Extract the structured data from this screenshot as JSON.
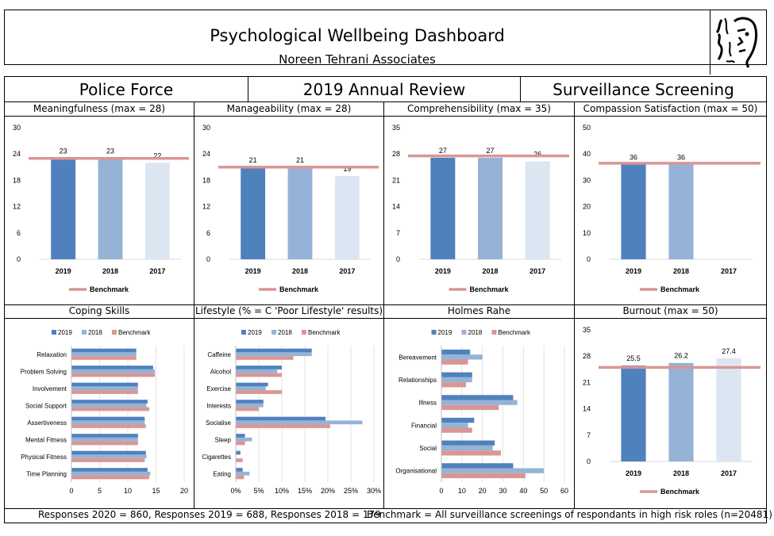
{
  "header": {
    "title": "Psychological Wellbeing Dashboard",
    "subtitle": "Noreen Tehrani Associates"
  },
  "banner": {
    "org": "Police Force",
    "period": "2019 Annual Review",
    "type": "Surveillance Screening"
  },
  "footer": {
    "responses": "Responses 2020 = 860, Responses 2019 = 688, Responses 2018 = 179",
    "benchmark": "Benchmark = All surveillance screenings of respondants in high risk roles (n=20481)"
  },
  "colors": {
    "y2019": "#4f81bd",
    "y2018": "#95b3d7",
    "y2017": "#dce6f2",
    "benchmark": "#d99694"
  },
  "chart_data": [
    {
      "id": "meaningfulness",
      "type": "bar",
      "title": "Meaningfulness (max = 28)",
      "categories": [
        "2019",
        "2018",
        "2017"
      ],
      "values": [
        23,
        23,
        22
      ],
      "labels": [
        "23",
        "23",
        "22"
      ],
      "ylim": [
        0,
        30
      ],
      "yticks": [
        0,
        6,
        12,
        18,
        24,
        30
      ],
      "benchmark": 23,
      "legend": "Benchmark"
    },
    {
      "id": "manageability",
      "type": "bar",
      "title": "Manageability (max = 28)",
      "categories": [
        "2019",
        "2018",
        "2017"
      ],
      "values": [
        21,
        21,
        19
      ],
      "labels": [
        "21",
        "21",
        "19"
      ],
      "ylim": [
        0,
        30
      ],
      "yticks": [
        0,
        6,
        12,
        18,
        24,
        30
      ],
      "benchmark": 21,
      "legend": "Benchmark"
    },
    {
      "id": "comprehensibility",
      "type": "bar",
      "title": "Comprehensibility (max = 35)",
      "categories": [
        "2019",
        "2018",
        "2017"
      ],
      "values": [
        27,
        27,
        26
      ],
      "labels": [
        "27",
        "27",
        "26"
      ],
      "ylim": [
        0,
        35
      ],
      "yticks": [
        0,
        7,
        14,
        21,
        28,
        35
      ],
      "benchmark": 27.5,
      "legend": "Benchmark"
    },
    {
      "id": "compassion",
      "type": "bar",
      "title": "Compassion Satisfaction (max = 50)",
      "categories": [
        "2019",
        "2018",
        "2017"
      ],
      "values": [
        36,
        36,
        null
      ],
      "labels": [
        "36",
        "36",
        ""
      ],
      "ylim": [
        0,
        50
      ],
      "yticks": [
        0,
        10,
        20,
        30,
        40,
        50
      ],
      "benchmark": 36.5,
      "legend": "Benchmark"
    },
    {
      "id": "coping",
      "type": "bar",
      "orientation": "horizontal",
      "title": "Coping Skills",
      "categories": [
        "Relaxation",
        "Problem Solving",
        "Involvement",
        "Social Support",
        "Assertiveness",
        "Mental Fitness",
        "Physical Fitness",
        "Time Planning"
      ],
      "series": [
        {
          "name": "2019",
          "values": [
            11.5,
            14.5,
            11.8,
            13.5,
            13,
            11.8,
            13.2,
            13.5
          ]
        },
        {
          "name": "2018",
          "values": [
            11.5,
            14.8,
            11.8,
            13.3,
            13,
            11.8,
            13.3,
            14
          ]
        },
        {
          "name": "Benchmark",
          "values": [
            11.5,
            14.8,
            11.8,
            13.8,
            13.2,
            11.8,
            13,
            13.8
          ]
        }
      ],
      "xlim": [
        0,
        20
      ],
      "xticks": [
        "0",
        "5",
        "10",
        "15",
        "20"
      ],
      "xtickvals": [
        0,
        5,
        10,
        15,
        20
      ]
    },
    {
      "id": "lifestyle",
      "type": "bar",
      "orientation": "horizontal",
      "title": "Lifestyle (% = C 'Poor Lifestyle' results)",
      "categories": [
        "Caffeine",
        "Alcohol",
        "Exercise",
        "Interests",
        "Socialise",
        "Sleep",
        "Cigarettes",
        "Eating"
      ],
      "series": [
        {
          "name": "2019",
          "values": [
            16.5,
            10,
            7,
            6,
            19.5,
            2,
            1,
            1.5
          ]
        },
        {
          "name": "2018",
          "values": [
            16.5,
            9,
            6.5,
            6,
            27.5,
            3.5,
            0,
            3
          ]
        },
        {
          "name": "Benchmark",
          "values": [
            12.5,
            10,
            10,
            5,
            20.5,
            2,
            1.5,
            1.8
          ]
        }
      ],
      "xlim": [
        0,
        30
      ],
      "xticks": [
        "0%",
        "5%",
        "10%",
        "15%",
        "20%",
        "25%",
        "30%"
      ],
      "xtickvals": [
        0,
        5,
        10,
        15,
        20,
        25,
        30
      ]
    },
    {
      "id": "holmes",
      "type": "bar",
      "orientation": "horizontal",
      "title": "Holmes Rahe",
      "categories": [
        "Bereavement",
        "Relationships",
        "Illness",
        "Financial",
        "Social",
        "Organisational"
      ],
      "series": [
        {
          "name": "2019",
          "values": [
            14,
            15,
            35,
            16,
            26,
            35
          ]
        },
        {
          "name": "2018",
          "values": [
            20,
            15,
            37,
            13,
            25,
            50
          ]
        },
        {
          "name": "Benchmark",
          "values": [
            13,
            12,
            28,
            15,
            29,
            41
          ]
        }
      ],
      "xlim": [
        0,
        60
      ],
      "xticks": [
        "0",
        "10",
        "20",
        "30",
        "40",
        "50",
        "60"
      ],
      "xtickvals": [
        0,
        10,
        20,
        30,
        40,
        50,
        60
      ]
    },
    {
      "id": "burnout",
      "type": "bar",
      "title": "Burnout (max = 50)",
      "categories": [
        "2019",
        "2018",
        "2017"
      ],
      "values": [
        25.5,
        26.2,
        27.4
      ],
      "labels": [
        "25.5",
        "26.2",
        "27.4"
      ],
      "ylim": [
        0,
        35
      ],
      "yticks": [
        0,
        7,
        14,
        21,
        28,
        35
      ],
      "benchmark": 25,
      "legend": "Benchmark"
    }
  ]
}
